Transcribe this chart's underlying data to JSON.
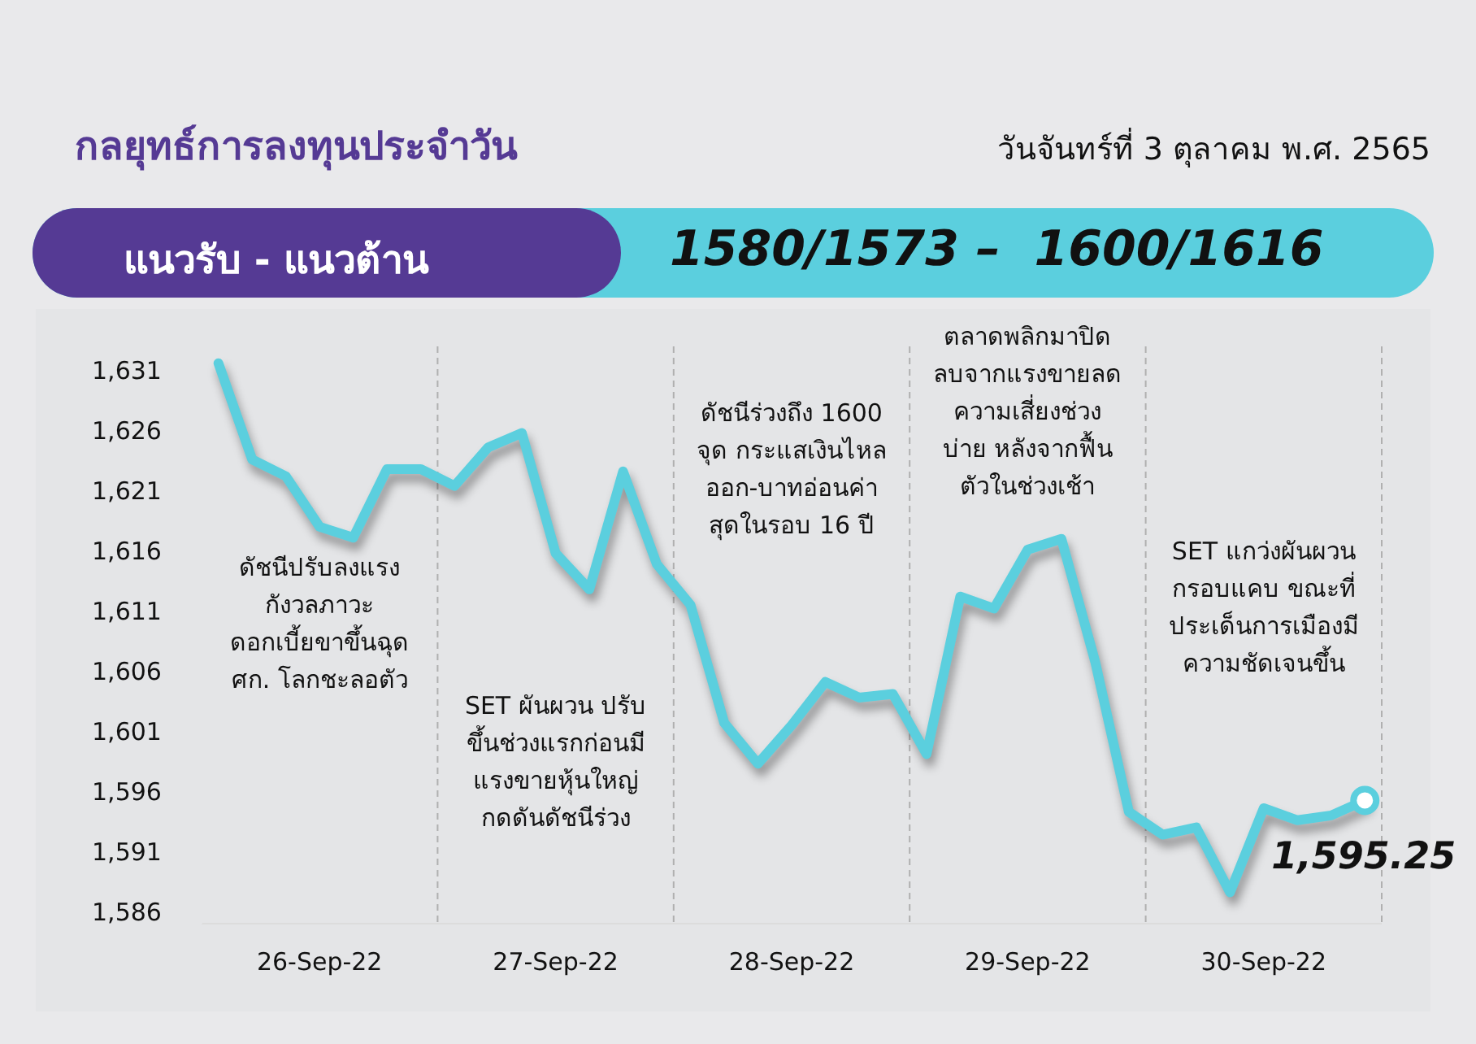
{
  "chart_data": {
    "type": "line",
    "title": "กลยุทธ์การลงทุนประจำวัน",
    "subtitle": "วันจันทร์ที่ 3 ตุลาคม พ.ศ. 2565",
    "annotations": [
      "ดัชนีปรับลงแรง\nกังวลภาวะ\nดอกเบี้ยขาขึ้นฉุด\nศก. โลกชะลอตัว",
      "SET ผันผวน ปรับ\nขึ้นช่วงแรกก่อนมี\nแรงขายหุ้นใหญ่\nกดดันดัชนีร่วง",
      "ดัชนีร่วงถึง 1600\nจุด กระแสเงินไหล\nออก-บาทอ่อนค่า\nสุดในรอบ 16 ปี",
      "ตลาดพลิกมาปิด\nลบจากแรงขายลด\nความเสี่ยงช่วง\nบ่าย หลังจากฟื้น\nตัวในช่วงเช้า",
      "SET แกว่งผันผวน\nกรอบแคบ ขณะที่\nประเด็นการเมืองมี\nความชัดเจนขึ้น",
      "แนวรับ - แนวต้าน",
      "1580/1573 –  1600/1616"
    ],
    "categories": [
      null,
      null,
      null,
      "26-Sep-22",
      null,
      null,
      null,
      null,
      null,
      null,
      "27-Sep-22",
      null,
      null,
      null,
      null,
      null,
      null,
      "28-Sep-22",
      null,
      null,
      null,
      null,
      null,
      null,
      "29-Sep-22",
      null,
      null,
      null,
      null,
      null,
      null,
      "30-Sep-22",
      null,
      null,
      null
    ],
    "series": [
      {
        "color": "#5bcfde",
        "values": [
          1631.6,
          1623.6,
          1622.2,
          1618.0,
          1617.1,
          1622.8,
          1622.8,
          1621.4,
          1624.6,
          1625.8,
          1615.8,
          1612.8,
          1622.6,
          1614.9,
          1611.5,
          1601.7,
          1598.3,
          1601.5,
          1605.1,
          1603.8,
          1604.1,
          1599.1,
          1612.2,
          1611.2,
          1616.1,
          1617.0,
          1606.8,
          1594.3,
          1592.4,
          1593.0,
          1587.6,
          1594.6,
          1593.6,
          1594.0,
          1595.25
        ],
        "value_labels": [
          null,
          null,
          null,
          null,
          null,
          null,
          null,
          null,
          null,
          null,
          null,
          null,
          null,
          null,
          null,
          null,
          null,
          null,
          null,
          null,
          null,
          null,
          null,
          null,
          null,
          null,
          null,
          null,
          null,
          null,
          null,
          null,
          null,
          null,
          "1,595.25"
        ]
      }
    ],
    "ylim": [
      1585,
      1633
    ],
    "yticks": [
      {
        "value": 1586,
        "label": "1,586"
      },
      {
        "value": 1591,
        "label": "1,591"
      },
      {
        "value": 1596,
        "label": "1,596"
      },
      {
        "value": 1601,
        "label": "1,601"
      },
      {
        "value": 1606,
        "label": "1,606"
      },
      {
        "value": 1611,
        "label": "1,611"
      },
      {
        "value": 1616,
        "label": "1,616"
      },
      {
        "value": 1621,
        "label": "1,621"
      },
      {
        "value": 1626,
        "label": "1,626"
      },
      {
        "value": 1631,
        "label": "1,631"
      }
    ],
    "marker": "none",
    "line_style": "solid",
    "grid": false,
    "legend": false
  }
}
